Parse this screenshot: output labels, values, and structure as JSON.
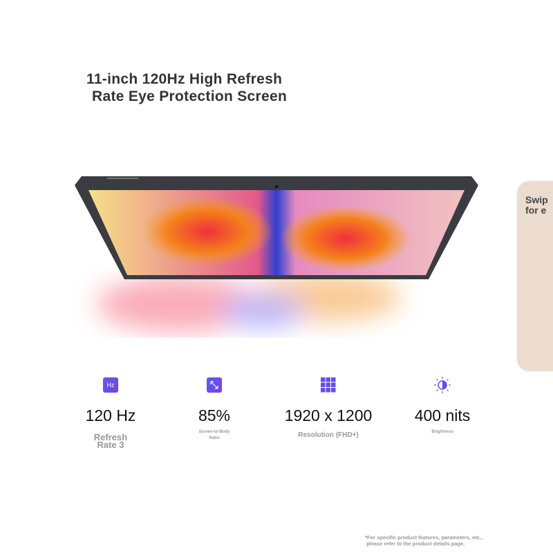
{
  "title": {
    "line1": "11-inch 120Hz High Refresh",
    "line2": "Rate Eye Protection Screen"
  },
  "side_card": {
    "line1": "Swip",
    "line2": "for e"
  },
  "specs": [
    {
      "icon": "hz-icon",
      "icon_text": "Hz",
      "value": "120 Hz",
      "label_line1": "Refresh",
      "label_line2": "Rate 3"
    },
    {
      "icon": "diagonal-arrow-icon",
      "value": "85%",
      "label_line1": "Screen-to-Body",
      "label_line2": "Ratio"
    },
    {
      "icon": "grid-icon",
      "value": "1920 x 1200",
      "label_line1": "Resolution (FHD+)"
    },
    {
      "icon": "brightness-icon",
      "value": "400 nits",
      "label_line1": "Brightness"
    }
  ],
  "footnote": {
    "line1": "*For specific product features, parameters, etc.,",
    "line2": " please refer to the product details page."
  },
  "colors": {
    "accent": "#5b4ef0",
    "card": "#ecdcd0"
  }
}
